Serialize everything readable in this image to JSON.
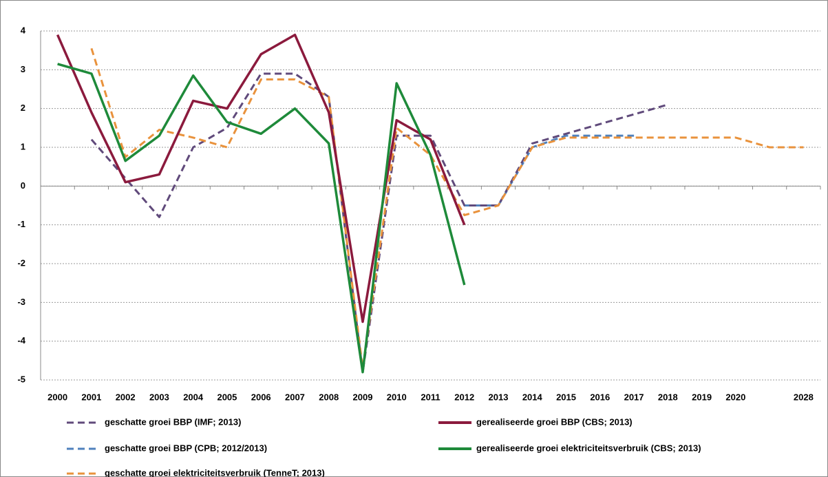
{
  "chart_data": {
    "type": "line",
    "categories": [
      "2000",
      "2001",
      "2002",
      "2003",
      "2004",
      "2005",
      "2006",
      "2007",
      "2008",
      "2009",
      "2010",
      "2011",
      "2012",
      "2013",
      "2014",
      "2015",
      "2016",
      "2017",
      "2018",
      "2019",
      "2020",
      null,
      "2028"
    ],
    "ylim": [
      -5,
      4
    ],
    "yticks": [
      -5,
      -4,
      -3,
      -2,
      -1,
      0,
      1,
      2,
      3,
      4
    ],
    "grid": true,
    "series": [
      {
        "name": "geschatte groei BBP (IMF; 2013)",
        "color": "#604a7b",
        "dash": true,
        "values": [
          null,
          1.2,
          0.2,
          -0.8,
          1.0,
          1.5,
          2.9,
          2.9,
          2.3,
          -4.8,
          1.3,
          1.3,
          -0.5,
          -0.5,
          1.1,
          1.35,
          1.6,
          1.85,
          2.1,
          null,
          null,
          null,
          null
        ]
      },
      {
        "name": "gerealiseerde groei BBP (CBS; 2013)",
        "color": "#8b1a3d",
        "dash": false,
        "values": [
          3.9,
          1.9,
          0.1,
          0.3,
          2.2,
          2.0,
          3.4,
          3.9,
          1.9,
          -3.5,
          1.7,
          1.2,
          -1.0,
          null,
          null,
          null,
          null,
          null,
          null,
          null,
          null,
          null,
          null
        ]
      },
      {
        "name": "geschatte groei BBP (CPB; 2012/2013)",
        "color": "#4f81bd",
        "dash": true,
        "values": [
          null,
          null,
          null,
          null,
          null,
          null,
          null,
          null,
          null,
          null,
          null,
          null,
          -0.5,
          -0.5,
          1.0,
          1.3,
          1.3,
          1.3,
          null,
          null,
          null,
          null,
          null
        ]
      },
      {
        "name": "gerealiseerde groei elektriciteitsverbruik (CBS; 2013)",
        "color": "#1e8a3a",
        "dash": false,
        "values": [
          3.15,
          2.9,
          0.65,
          1.3,
          2.85,
          1.65,
          1.35,
          2.0,
          1.1,
          -4.8,
          2.65,
          0.8,
          -2.55,
          null,
          null,
          null,
          null,
          null,
          null,
          null,
          null,
          null,
          null
        ]
      },
      {
        "name": "geschatte groei elektriciteitsverbruik (TenneT; 2013)",
        "color": "#e9923c",
        "dash": true,
        "values": [
          null,
          3.55,
          0.75,
          1.45,
          1.25,
          1.0,
          2.75,
          2.75,
          2.3,
          -4.7,
          1.5,
          0.8,
          -0.75,
          -0.5,
          1.0,
          1.25,
          1.25,
          1.25,
          1.25,
          1.25,
          1.25,
          1.0,
          1.0
        ]
      }
    ]
  }
}
